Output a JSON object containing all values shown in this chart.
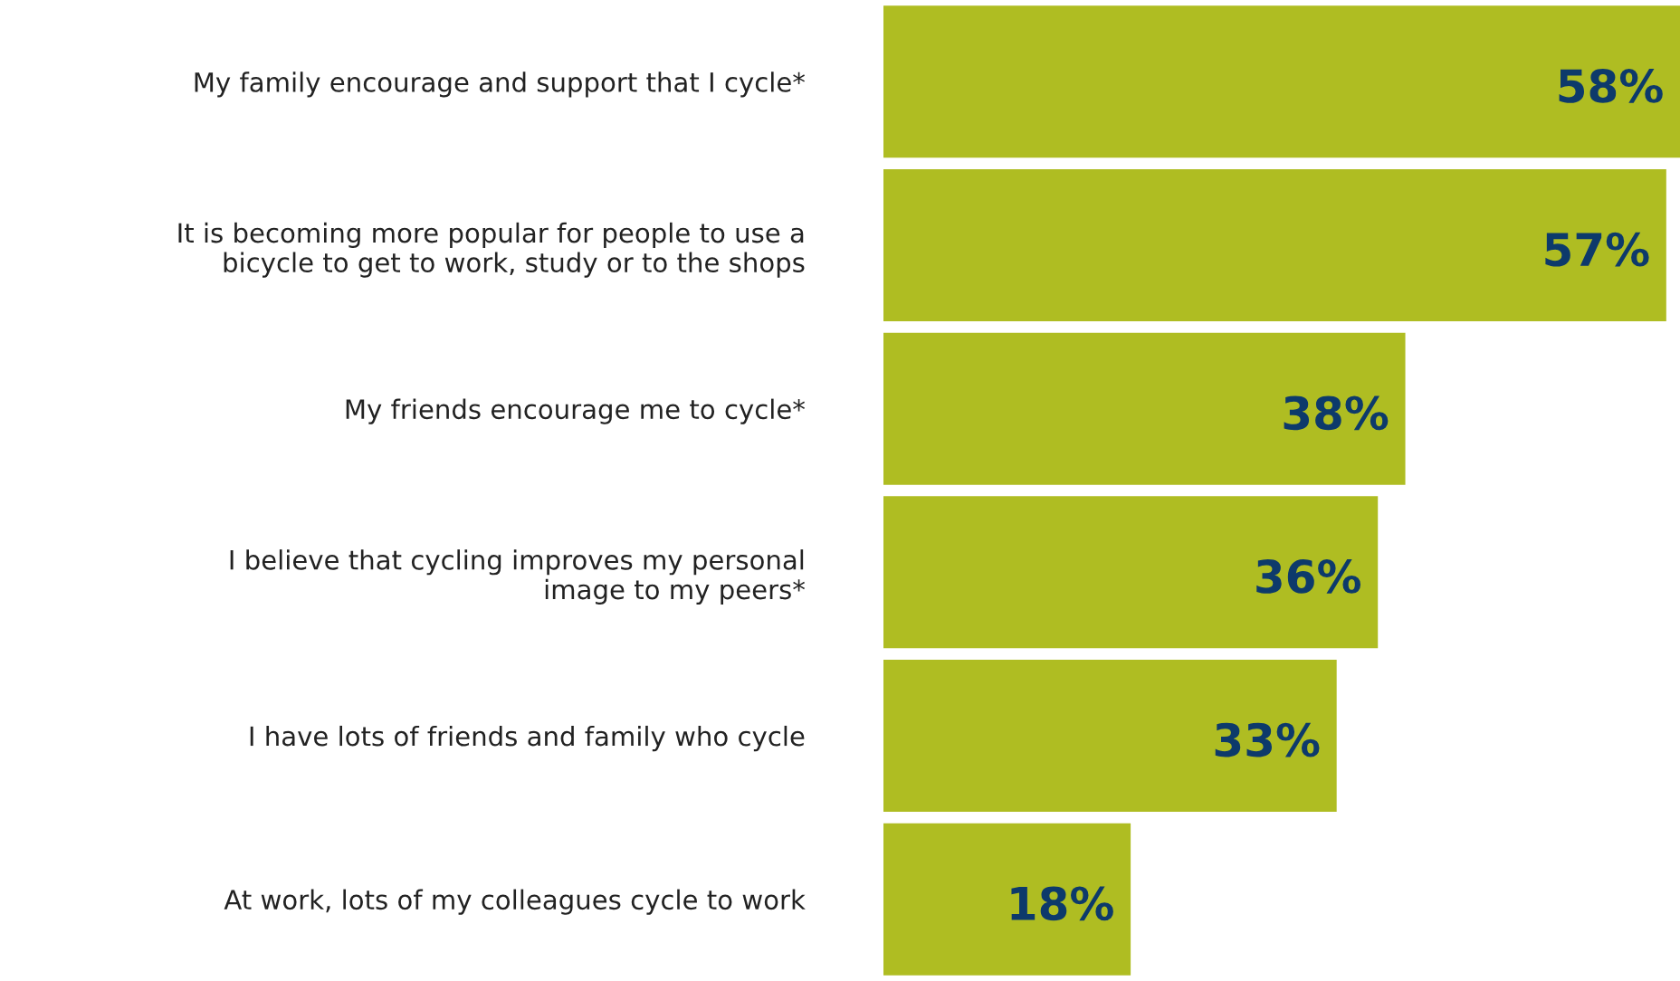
{
  "chart_data": {
    "type": "bar",
    "orientation": "horizontal",
    "categories": [
      "My family encourage and support that I cycle*",
      "It is becoming more popular for people to use a\nbicycle to get to work, study or to the shops",
      "My friends encourage me to cycle*",
      "I believe that cycling improves my personal\nimage to my peers*",
      "I have lots of friends and family who cycle",
      "At work, lots of my colleagues cycle to work"
    ],
    "values": [
      58,
      57,
      38,
      36,
      33,
      18
    ],
    "value_labels": [
      "58%",
      "57%",
      "38%",
      "36%",
      "33%",
      "18%"
    ],
    "color": "#afbd22"
  }
}
